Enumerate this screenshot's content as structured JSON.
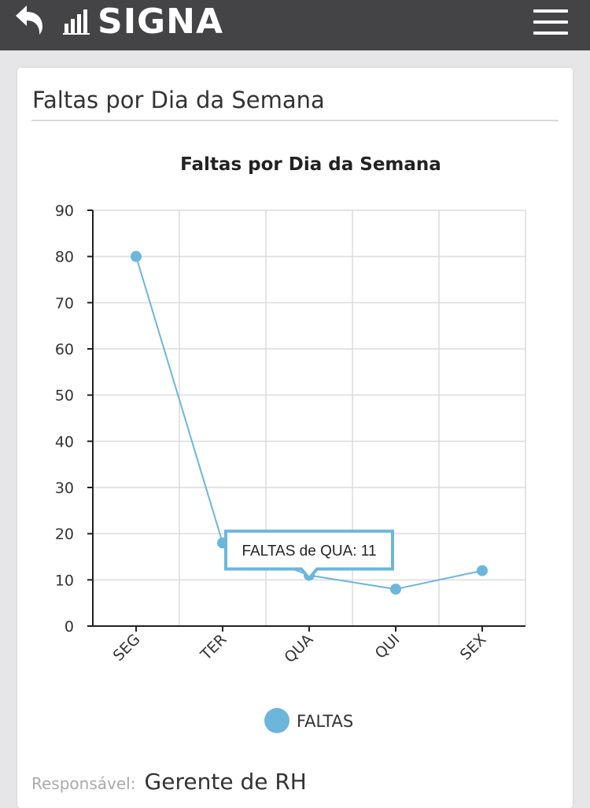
{
  "header": {
    "app_name": "SIGNA",
    "back_icon": "back-arrow-icon",
    "menu_icon": "hamburger-menu-icon",
    "bg_color": "#444446"
  },
  "card": {
    "title": "Faltas por Dia da Semana"
  },
  "chart_data": {
    "type": "line",
    "title": "Faltas por Dia da Semana",
    "categories": [
      "SEG",
      "TER",
      "QUA",
      "QUI",
      "SEX"
    ],
    "series": [
      {
        "name": "FALTAS",
        "values": [
          80,
          18,
          11,
          8,
          12
        ],
        "color": "#6cb6dc"
      }
    ],
    "ylim": [
      0,
      90
    ],
    "yticks": [
      0,
      10,
      20,
      30,
      40,
      50,
      60,
      70,
      80,
      90
    ],
    "grid": true,
    "legend": "bottom-center",
    "tooltip": {
      "text": "FALTAS de QUA: 11",
      "category": "QUA"
    }
  },
  "footer": {
    "label": "Responsável:",
    "value": "Gerente de RH"
  }
}
